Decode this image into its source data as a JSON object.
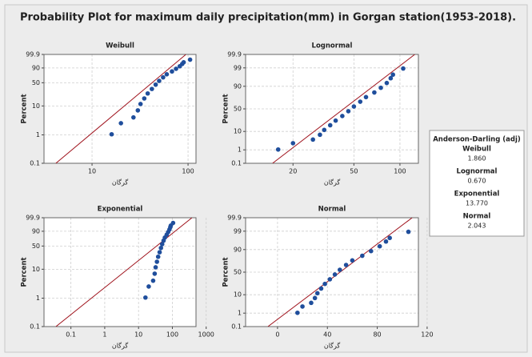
{
  "title": "Probability Plot for maximum daily precipitation(mm) in Gorgan station(1953-2018).",
  "chart_data": [
    {
      "type": "scatter",
      "title": "Weibull",
      "xlabel": "گرگان",
      "ylabel": "Percent",
      "xscale": "log",
      "yscale": "weibull",
      "grid": true,
      "color": "#1f4e9c",
      "line_color": "#a0141e",
      "x": [
        16,
        20,
        27,
        30,
        32,
        35,
        38,
        42,
        46,
        50,
        55,
        60,
        68,
        75,
        82,
        87,
        90,
        105
      ],
      "values": [
        1.05,
        2.56,
        4.07,
        7.08,
        11.6,
        17.6,
        25.2,
        34.2,
        44.7,
        55.3,
        65.8,
        74.8,
        82.4,
        88.4,
        92.9,
        95.9,
        97.4,
        98.9
      ],
      "fit_x": [
        4.2,
        95
      ],
      "fit_values": [
        0.1,
        99.9
      ],
      "xlim": [
        3.16,
        121
      ],
      "ylim": [
        0.1,
        99.9
      ],
      "xticks": [
        10,
        100
      ],
      "yticks": [
        0.1,
        1,
        10,
        50,
        90,
        99.9
      ]
    },
    {
      "type": "scatter",
      "title": "Lognormal",
      "xlabel": "گرگان",
      "ylabel": "Percent",
      "xscale": "log",
      "yscale": "normal",
      "grid": true,
      "color": "#1f4e9c",
      "line_color": "#a0141e",
      "x": [
        16,
        20,
        27,
        30,
        32,
        35,
        38,
        42,
        46,
        50,
        55,
        60,
        68,
        75,
        82,
        87,
        90,
        105
      ],
      "values": [
        1.05,
        2.56,
        4.07,
        7.08,
        11.6,
        17.6,
        25.2,
        34.2,
        44.7,
        55.3,
        65.8,
        74.8,
        82.4,
        88.4,
        92.9,
        95.9,
        97.4,
        98.9
      ],
      "fit_x": [
        14.7,
        125
      ],
      "fit_values": [
        0.1,
        99.9
      ],
      "xlim": [
        9.8,
        132
      ],
      "ylim": [
        0.1,
        99.9
      ],
      "xticks": [
        20,
        50,
        100
      ],
      "yticks": [
        0.1,
        1,
        10,
        50,
        90,
        99,
        99.9
      ]
    },
    {
      "type": "scatter",
      "title": "Exponential",
      "xlabel": "گرگان",
      "ylabel": "Percent",
      "xscale": "log",
      "yscale": "weibull",
      "grid": true,
      "color": "#1f4e9c",
      "line_color": "#a0141e",
      "x": [
        16,
        20,
        27,
        30,
        32,
        35,
        38,
        42,
        46,
        50,
        55,
        60,
        68,
        75,
        82,
        87,
        90,
        105
      ],
      "values": [
        1.05,
        2.56,
        4.07,
        7.08,
        11.6,
        17.6,
        25.2,
        34.2,
        44.7,
        55.3,
        65.8,
        74.8,
        82.4,
        88.4,
        92.9,
        95.9,
        97.4,
        98.9
      ],
      "fit_x": [
        0.036,
        380
      ],
      "fit_values": [
        0.1,
        99.9
      ],
      "xlim": [
        0.016,
        500
      ],
      "ylim": [
        0.1,
        99.9
      ],
      "xticks": [
        0.1,
        1,
        10,
        100,
        1000
      ],
      "yticks": [
        0.1,
        1,
        10,
        50,
        90,
        99.9
      ]
    },
    {
      "type": "scatter",
      "title": "Normal",
      "xlabel": "گرگان",
      "ylabel": "Percent",
      "xscale": "linear",
      "yscale": "normal",
      "grid": true,
      "color": "#1f4e9c",
      "line_color": "#a0141e",
      "x": [
        16,
        20,
        27,
        30,
        32,
        35,
        38,
        42,
        46,
        50,
        55,
        60,
        68,
        75,
        82,
        87,
        90,
        105
      ],
      "values": [
        1.05,
        2.56,
        4.07,
        7.08,
        11.6,
        17.6,
        25.2,
        34.2,
        44.7,
        55.3,
        65.8,
        74.8,
        82.4,
        88.4,
        92.9,
        95.9,
        97.4,
        98.9
      ],
      "fit_x": [
        -7.7,
        108
      ],
      "fit_values": [
        0.1,
        99.9
      ],
      "xlim": [
        -25.6,
        113
      ],
      "ylim": [
        0.1,
        99.9
      ],
      "xticks": [
        0,
        40,
        80,
        120
      ],
      "yticks": [
        0.1,
        1,
        10,
        50,
        90,
        99,
        99.9
      ]
    }
  ],
  "anderson_darling": {
    "heading": "Anderson-Darling (adj)",
    "entries": [
      {
        "name": "Weibull",
        "value": "1.860"
      },
      {
        "name": "Lognormal",
        "value": "0.670"
      },
      {
        "name": "Exponential",
        "value": "13.770"
      },
      {
        "name": "Normal",
        "value": "2.043"
      }
    ]
  }
}
